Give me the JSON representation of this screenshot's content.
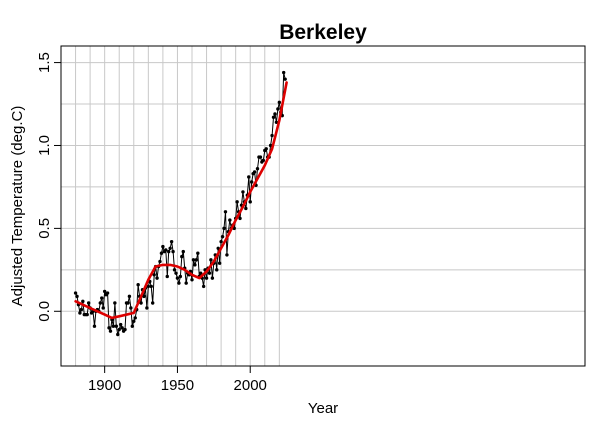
{
  "chart_data": {
    "type": "line",
    "title": "Berkeley",
    "xlabel": "Year",
    "ylabel": "Adjusted Temperature (deg.C)",
    "xlim": [
      1870,
      2230
    ],
    "ylim": [
      -0.33,
      1.6
    ],
    "x_ticks": [
      {
        "value": 1900,
        "label": "1900"
      },
      {
        "value": 1950,
        "label": "1950"
      },
      {
        "value": 2000,
        "label": "2000"
      }
    ],
    "y_ticks": [
      {
        "value": 0.0,
        "label": "0.0"
      },
      {
        "value": 0.5,
        "label": "0.5"
      },
      {
        "value": 1.0,
        "label": "1.0"
      },
      {
        "value": 1.5,
        "label": "1.5"
      }
    ],
    "x_grid": [
      1880,
      1890,
      1900,
      1910,
      1920,
      1930,
      1940,
      1950,
      1960,
      1970,
      1980,
      1990,
      2000,
      2010,
      2020
    ],
    "y_grid": [
      0.0,
      0.25,
      0.5,
      0.75,
      1.0,
      1.25,
      1.5
    ],
    "grid": true,
    "series": [
      {
        "color": "#000000",
        "marker": "point",
        "x": [
          1880,
          1881,
          1882,
          1883,
          1884,
          1885,
          1886,
          1887,
          1888,
          1889,
          1890,
          1891,
          1892,
          1893,
          1894,
          1895,
          1896,
          1897,
          1898,
          1899,
          1900,
          1901,
          1902,
          1903,
          1904,
          1905,
          1906,
          1907,
          1908,
          1909,
          1910,
          1911,
          1912,
          1913,
          1914,
          1915,
          1916,
          1917,
          1918,
          1919,
          1920,
          1921,
          1922,
          1923,
          1924,
          1925,
          1926,
          1927,
          1928,
          1929,
          1930,
          1931,
          1932,
          1933,
          1934,
          1935,
          1936,
          1937,
          1938,
          1939,
          1940,
          1941,
          1942,
          1943,
          1944,
          1945,
          1946,
          1947,
          1948,
          1949,
          1950,
          1951,
          1952,
          1953,
          1954,
          1955,
          1956,
          1957,
          1958,
          1959,
          1960,
          1961,
          1962,
          1963,
          1964,
          1965,
          1966,
          1967,
          1968,
          1969,
          1970,
          1971,
          1972,
          1973,
          1974,
          1975,
          1976,
          1977,
          1978,
          1979,
          1980,
          1981,
          1982,
          1983,
          1984,
          1985,
          1986,
          1987,
          1988,
          1989,
          1990,
          1991,
          1992,
          1993,
          1994,
          1995,
          1996,
          1997,
          1998,
          1999,
          2000,
          2001,
          2002,
          2003,
          2004,
          2005,
          2006,
          2007,
          2008,
          2009,
          2010,
          2011,
          2012,
          2013,
          2014,
          2015,
          2016,
          2017,
          2018,
          2019,
          2020,
          2021,
          2022,
          2023,
          2024
        ],
        "values": [
          0.11,
          0.09,
          0.04,
          -0.01,
          0.01,
          0.06,
          -0.02,
          -0.02,
          -0.02,
          0.05,
          0.02,
          -0.01,
          0.0,
          -0.09,
          0.0,
          0.01,
          0.0,
          0.05,
          0.08,
          0.02,
          0.12,
          0.1,
          0.11,
          -0.1,
          -0.12,
          -0.05,
          -0.09,
          0.05,
          -0.09,
          -0.14,
          -0.11,
          -0.08,
          -0.1,
          -0.12,
          -0.11,
          0.05,
          0.05,
          0.09,
          0.02,
          -0.09,
          -0.06,
          -0.04,
          0.01,
          0.16,
          0.09,
          0.05,
          0.13,
          0.09,
          0.14,
          0.02,
          0.15,
          0.18,
          0.15,
          0.05,
          0.22,
          0.27,
          0.2,
          0.27,
          0.3,
          0.35,
          0.39,
          0.36,
          0.37,
          0.21,
          0.36,
          0.38,
          0.42,
          0.36,
          0.25,
          0.23,
          0.2,
          0.17,
          0.21,
          0.33,
          0.36,
          0.26,
          0.17,
          0.23,
          0.22,
          0.24,
          0.19,
          0.31,
          0.28,
          0.31,
          0.35,
          0.21,
          0.23,
          0.2,
          0.15,
          0.25,
          0.2,
          0.26,
          0.23,
          0.31,
          0.2,
          0.29,
          0.34,
          0.25,
          0.38,
          0.29,
          0.42,
          0.45,
          0.5,
          0.6,
          0.34,
          0.48,
          0.55,
          0.5,
          0.52,
          0.5,
          0.56,
          0.66,
          0.6,
          0.56,
          0.64,
          0.72,
          0.66,
          0.62,
          0.7,
          0.81,
          0.66,
          0.78,
          0.83,
          0.84,
          0.76,
          0.86,
          0.93,
          0.93,
          0.9,
          0.91,
          0.97,
          0.98,
          0.93,
          0.93,
          1.0,
          1.06,
          1.17,
          1.19,
          1.14,
          1.22,
          1.26,
          1.2,
          1.18,
          1.44,
          1.4
        ]
      },
      {
        "color": "#dd0000",
        "x": [
          1880,
          1885,
          1890,
          1895,
          1900,
          1905,
          1910,
          1915,
          1920,
          1925,
          1930,
          1935,
          1940,
          1945,
          1950,
          1955,
          1960,
          1965,
          1970,
          1975,
          1980,
          1985,
          1990,
          1995,
          2000,
          2005,
          2010,
          2015,
          2020,
          2025
        ],
        "values": [
          0.06,
          0.04,
          0.02,
          0.0,
          -0.02,
          -0.04,
          -0.03,
          -0.02,
          -0.01,
          0.09,
          0.19,
          0.27,
          0.28,
          0.28,
          0.27,
          0.25,
          0.22,
          0.2,
          0.24,
          0.3,
          0.38,
          0.46,
          0.55,
          0.63,
          0.72,
          0.8,
          0.88,
          0.98,
          1.15,
          1.38
        ]
      }
    ]
  }
}
